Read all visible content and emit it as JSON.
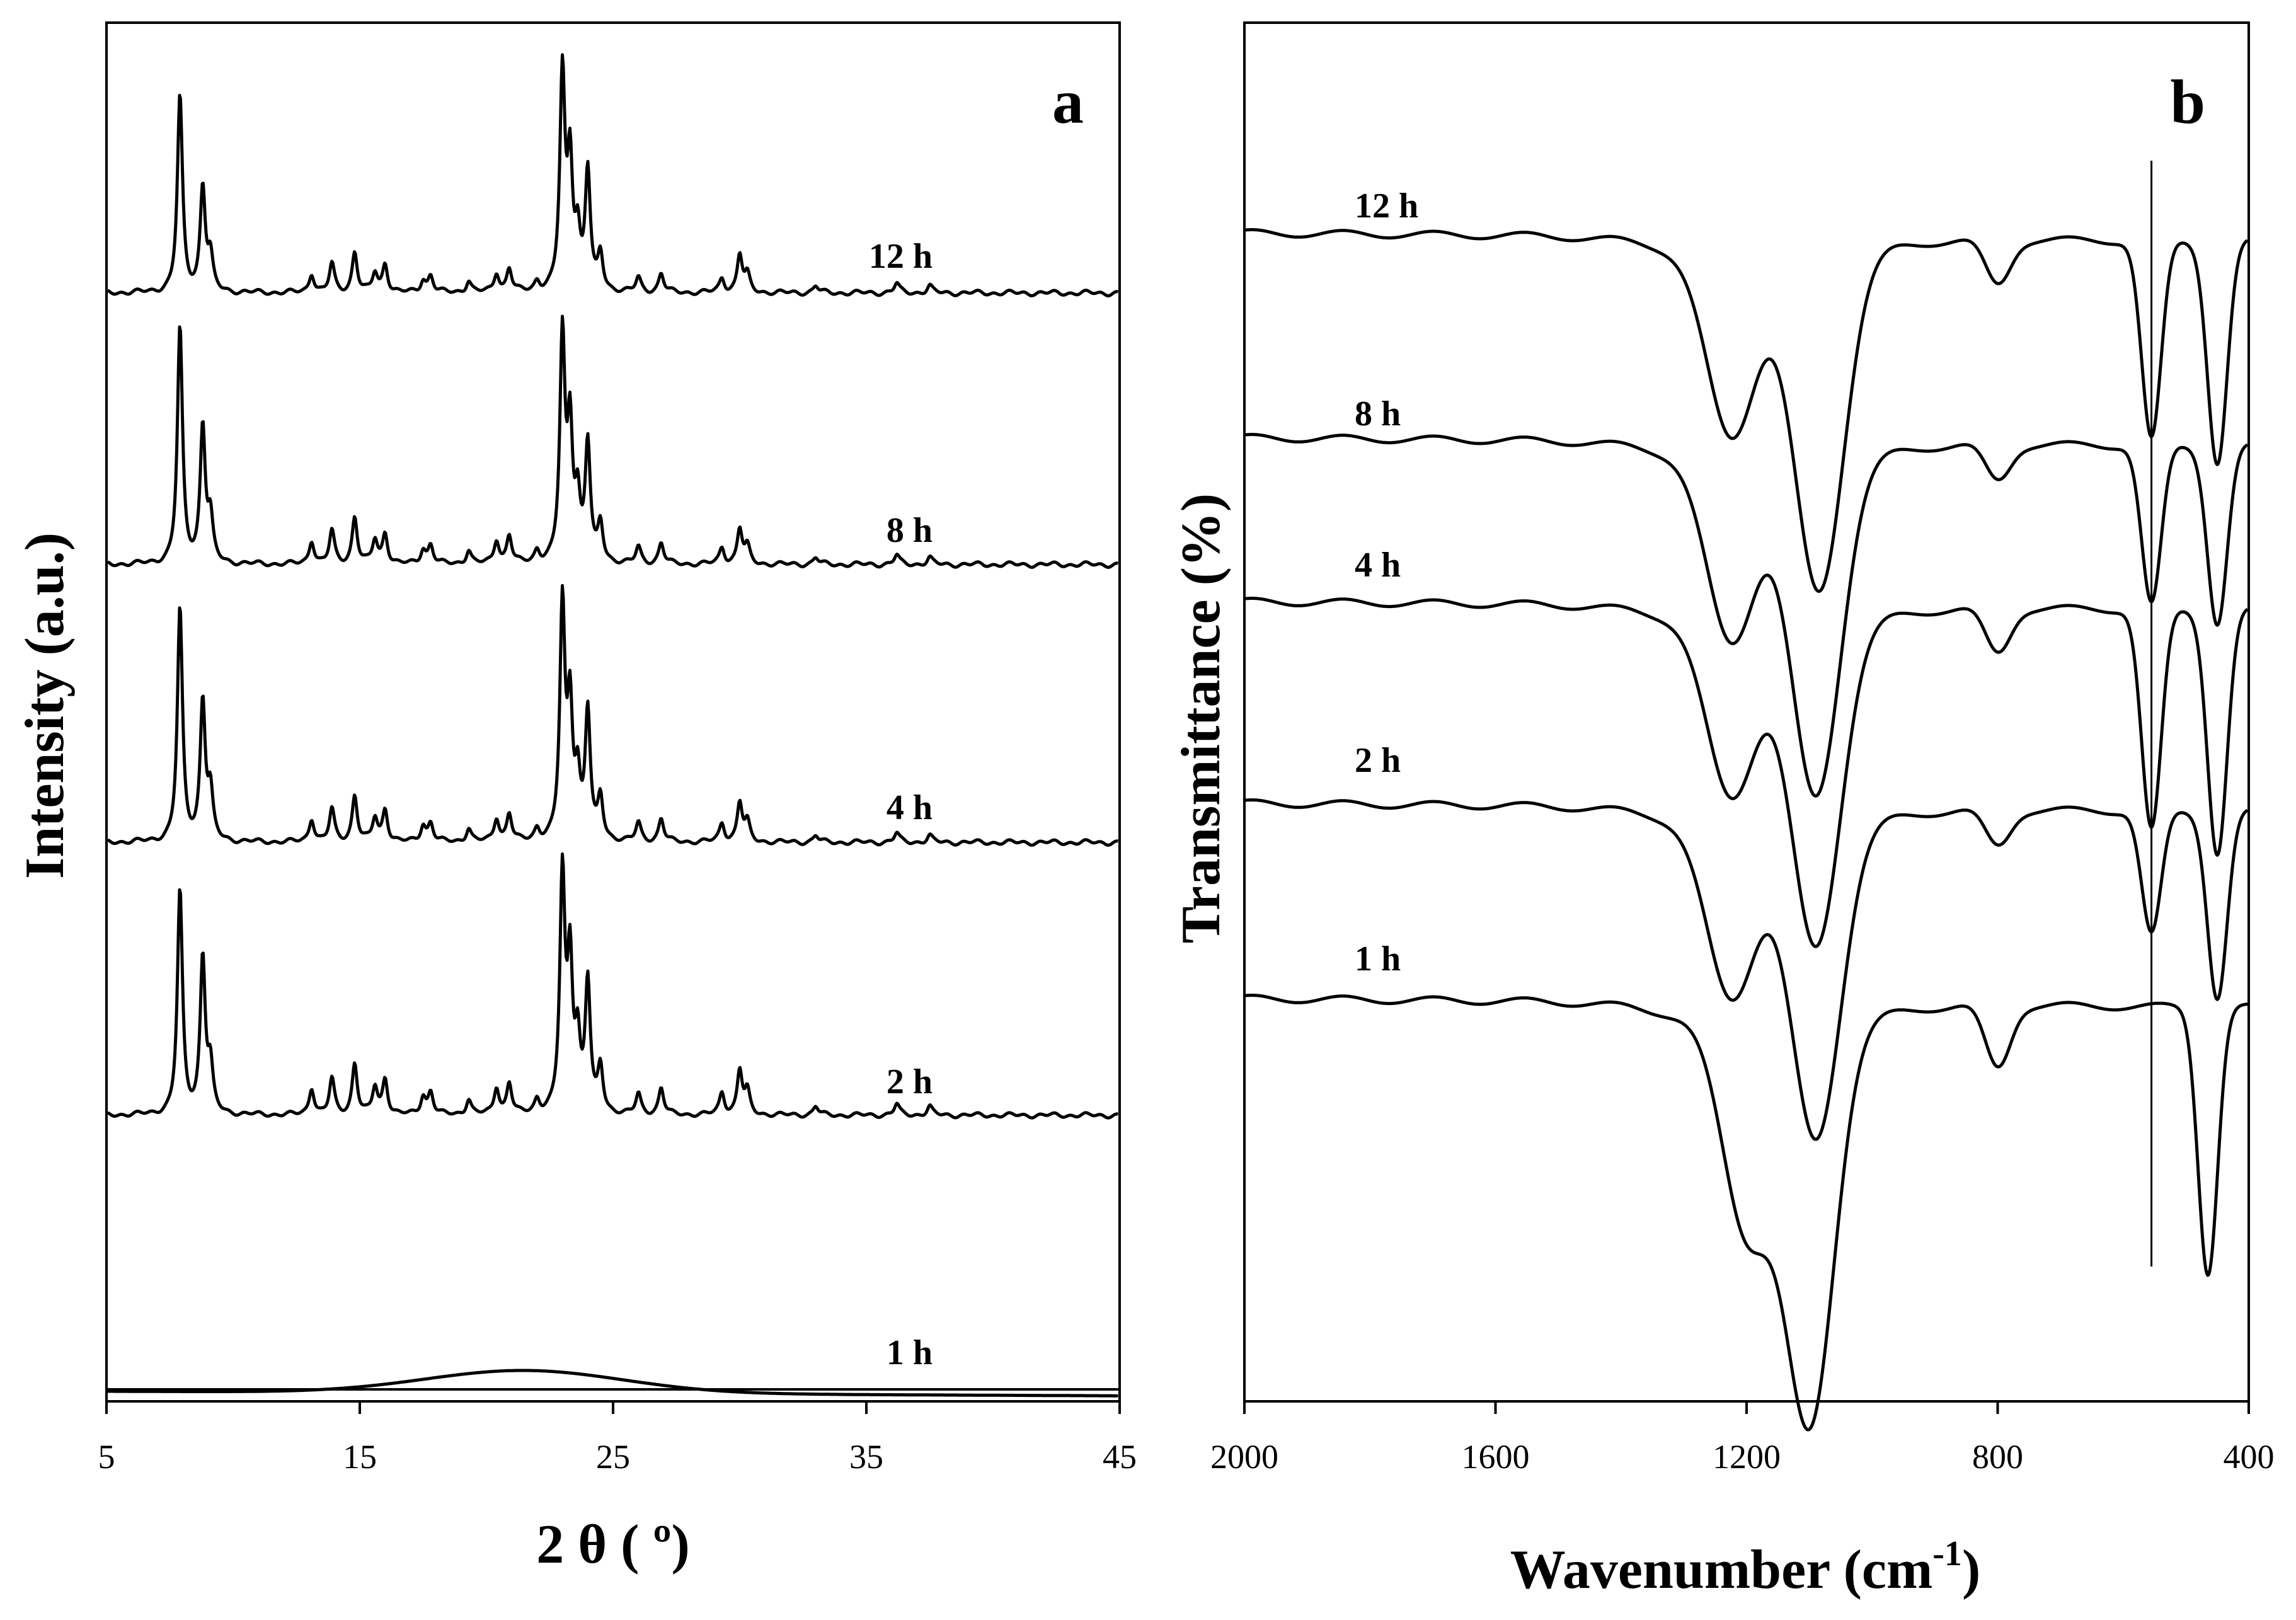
{
  "chart_data": [
    {
      "panel": "a",
      "type": "line",
      "xlabel": "2 θ ( º)",
      "ylabel": "Intensity (a.u.)",
      "xlim": [
        5,
        45
      ],
      "xticks": [
        5,
        15,
        25,
        35,
        45
      ],
      "series": [
        {
          "name": "1 h",
          "profile": "amorphous",
          "hump_center": 21.5,
          "hump_height": 0.03
        },
        {
          "name": "2 h",
          "profile": "crystalline",
          "peaks": [
            [
              7.9,
              1.0
            ],
            [
              8.8,
              0.7
            ],
            [
              9.1,
              0.2
            ],
            [
              13.1,
              0.12
            ],
            [
              13.9,
              0.16
            ],
            [
              14.8,
              0.23
            ],
            [
              15.6,
              0.12
            ],
            [
              16.0,
              0.16
            ],
            [
              17.5,
              0.08
            ],
            [
              17.8,
              0.1
            ],
            [
              19.3,
              0.07
            ],
            [
              20.4,
              0.12
            ],
            [
              20.9,
              0.14
            ],
            [
              22.0,
              0.06
            ],
            [
              23.0,
              1.05
            ],
            [
              23.3,
              0.65
            ],
            [
              23.6,
              0.3
            ],
            [
              24.0,
              0.58
            ],
            [
              24.5,
              0.2
            ],
            [
              26.0,
              0.09
            ],
            [
              26.9,
              0.12
            ],
            [
              29.3,
              0.1
            ],
            [
              30.0,
              0.2
            ],
            [
              30.3,
              0.1
            ],
            [
              33.0,
              0.04
            ],
            [
              36.2,
              0.05
            ],
            [
              37.5,
              0.04
            ]
          ]
        },
        {
          "name": "4 h",
          "profile": "crystalline",
          "peaks": [
            [
              7.9,
              1.0
            ],
            [
              8.8,
              0.6
            ],
            [
              9.1,
              0.2
            ],
            [
              13.1,
              0.1
            ],
            [
              13.9,
              0.14
            ],
            [
              14.8,
              0.2
            ],
            [
              15.6,
              0.1
            ],
            [
              16.0,
              0.14
            ],
            [
              17.5,
              0.07
            ],
            [
              17.8,
              0.08
            ],
            [
              19.3,
              0.06
            ],
            [
              20.4,
              0.1
            ],
            [
              20.9,
              0.12
            ],
            [
              22.0,
              0.05
            ],
            [
              23.0,
              1.0
            ],
            [
              23.3,
              0.55
            ],
            [
              23.6,
              0.25
            ],
            [
              24.0,
              0.55
            ],
            [
              24.5,
              0.18
            ],
            [
              26.0,
              0.08
            ],
            [
              26.9,
              0.1
            ],
            [
              29.3,
              0.08
            ],
            [
              30.0,
              0.17
            ],
            [
              30.3,
              0.08
            ],
            [
              33.0,
              0.03
            ],
            [
              36.2,
              0.04
            ],
            [
              37.5,
              0.03
            ]
          ]
        },
        {
          "name": "8 h",
          "profile": "crystalline",
          "peaks": [
            [
              7.9,
              1.0
            ],
            [
              8.8,
              0.58
            ],
            [
              9.1,
              0.18
            ],
            [
              13.1,
              0.1
            ],
            [
              13.9,
              0.14
            ],
            [
              14.8,
              0.2
            ],
            [
              15.6,
              0.1
            ],
            [
              16.0,
              0.13
            ],
            [
              17.5,
              0.06
            ],
            [
              17.8,
              0.08
            ],
            [
              19.3,
              0.06
            ],
            [
              20.4,
              0.1
            ],
            [
              20.9,
              0.12
            ],
            [
              22.0,
              0.05
            ],
            [
              23.0,
              0.95
            ],
            [
              23.3,
              0.55
            ],
            [
              23.6,
              0.25
            ],
            [
              24.0,
              0.5
            ],
            [
              24.5,
              0.16
            ],
            [
              26.0,
              0.07
            ],
            [
              26.9,
              0.09
            ],
            [
              29.3,
              0.07
            ],
            [
              30.0,
              0.15
            ],
            [
              30.3,
              0.07
            ],
            [
              33.0,
              0.03
            ],
            [
              36.2,
              0.04
            ],
            [
              37.5,
              0.03
            ]
          ]
        },
        {
          "name": "12 h",
          "profile": "crystalline",
          "peaks": [
            [
              7.9,
              0.82
            ],
            [
              8.8,
              0.44
            ],
            [
              9.1,
              0.14
            ],
            [
              13.1,
              0.08
            ],
            [
              13.9,
              0.12
            ],
            [
              14.8,
              0.17
            ],
            [
              15.6,
              0.08
            ],
            [
              16.0,
              0.12
            ],
            [
              17.5,
              0.05
            ],
            [
              17.8,
              0.07
            ],
            [
              19.3,
              0.05
            ],
            [
              20.4,
              0.08
            ],
            [
              20.9,
              0.1
            ],
            [
              22.0,
              0.04
            ],
            [
              23.0,
              0.9
            ],
            [
              23.3,
              0.52
            ],
            [
              23.6,
              0.22
            ],
            [
              24.0,
              0.5
            ],
            [
              24.5,
              0.15
            ],
            [
              26.0,
              0.06
            ],
            [
              26.9,
              0.08
            ],
            [
              29.3,
              0.06
            ],
            [
              30.0,
              0.16
            ],
            [
              30.3,
              0.07
            ],
            [
              33.0,
              0.03
            ],
            [
              36.2,
              0.04
            ],
            [
              37.5,
              0.03
            ]
          ]
        }
      ]
    },
    {
      "panel": "b",
      "type": "line",
      "xlabel": "Wavenumber (cm",
      "xlabel_sup": "-1",
      "xlabel_end": ")",
      "ylabel": "Transmittance  (%)",
      "xlim": [
        2000,
        400
      ],
      "xticks": [
        2000,
        1600,
        1200,
        800,
        400
      ],
      "reference_line_x": 555,
      "series": [
        {
          "name": "1 h",
          "bands": [
            [
              1100,
              0.9
            ],
            [
              1200,
              0.45
            ],
            [
              800,
              0.14
            ],
            [
              465,
              0.6
            ]
          ]
        },
        {
          "name": "2 h",
          "bands": [
            [
              1090,
              0.7
            ],
            [
              1225,
              0.38
            ],
            [
              800,
              0.08
            ],
            [
              555,
              0.28
            ],
            [
              450,
              0.42
            ]
          ]
        },
        {
          "name": "4 h",
          "bands": [
            [
              1090,
              0.72
            ],
            [
              1225,
              0.38
            ],
            [
              800,
              0.1
            ],
            [
              555,
              0.5
            ],
            [
              450,
              0.55
            ]
          ]
        },
        {
          "name": "8 h",
          "bands": [
            [
              1090,
              0.75
            ],
            [
              1225,
              0.4
            ],
            [
              800,
              0.08
            ],
            [
              555,
              0.36
            ],
            [
              450,
              0.4
            ]
          ]
        },
        {
          "name": "12 h",
          "bands": [
            [
              1085,
              0.75
            ],
            [
              1225,
              0.4
            ],
            [
              800,
              0.1
            ],
            [
              555,
              0.45
            ],
            [
              450,
              0.5
            ]
          ]
        }
      ]
    }
  ],
  "panel_a": {
    "letter": "a"
  },
  "panel_b": {
    "letter": "b"
  }
}
